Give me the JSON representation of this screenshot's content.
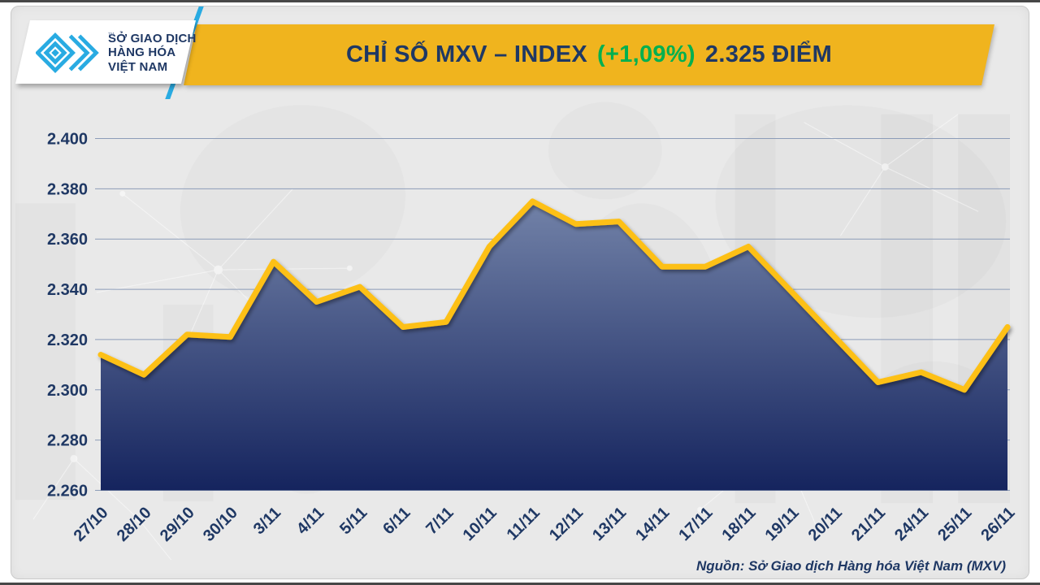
{
  "header": {
    "logo": {
      "tm": "™",
      "org_lines": [
        "SỞ GIAO DỊCH",
        "HÀNG HÓA",
        "VIỆT NAM"
      ]
    },
    "title": {
      "prefix": "CHỈ SỐ MXV – INDEX",
      "change": "(+1,09%)",
      "suffix": "2.325 ĐIỂM"
    }
  },
  "footer": {
    "source": "Nguồn: Sở Giao dịch Hàng hóa Việt Nam (MXV)"
  },
  "colors": {
    "banner": "#f0b41e",
    "navy": "#1f3864",
    "green": "#00b050",
    "cyan": "#29abe2",
    "line": "#fdc013",
    "grid": "#8c9cb8",
    "area_top": "#7282a8",
    "area_bottom": "#15245e"
  },
  "chart_data": {
    "type": "area",
    "title": "CHỈ SỐ MXV – INDEX (+1,09%) 2.325 ĐIỂM",
    "unit": "điểm",
    "categories": [
      "27/10",
      "28/10",
      "29/10",
      "30/10",
      "3/11",
      "4/11",
      "5/11",
      "6/11",
      "7/11",
      "10/11",
      "11/11",
      "12/11",
      "13/11",
      "14/11",
      "17/11",
      "18/11",
      "19/11",
      "20/11",
      "21/11",
      "24/11",
      "25/11",
      "26/11"
    ],
    "values": [
      2314,
      2306,
      2322,
      2321,
      2351,
      2335,
      2341,
      2325,
      2327,
      2357,
      2375,
      2366,
      2367,
      2349,
      2349,
      2357,
      2339,
      2321,
      2303,
      2307,
      2300,
      2325
    ],
    "y_ticks": [
      "2.400",
      "2.380",
      "2.360",
      "2.340",
      "2.320",
      "2.300",
      "2.280",
      "2.260"
    ],
    "y_tick_values": [
      2400,
      2380,
      2360,
      2340,
      2320,
      2300,
      2280,
      2260
    ],
    "ylim": [
      2260,
      2400
    ],
    "xlabel": "",
    "ylabel": "",
    "grid": true,
    "legend": false,
    "last_value_label": "2.325",
    "change_percent": "+1,09%"
  }
}
